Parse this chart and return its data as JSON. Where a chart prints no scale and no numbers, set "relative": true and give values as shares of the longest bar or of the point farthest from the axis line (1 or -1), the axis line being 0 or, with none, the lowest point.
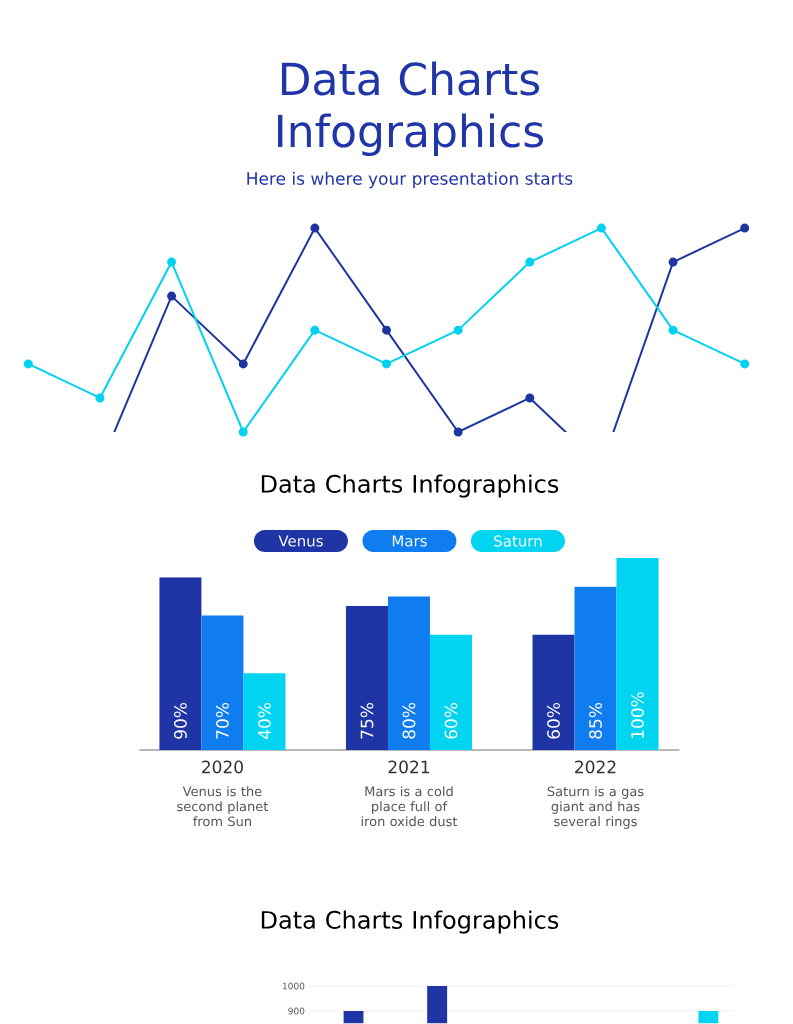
{
  "chart_data": [
    {
      "type": "line",
      "title": "Data Charts Infographics",
      "subtitle": "Here is where your presentation starts",
      "relative": true,
      "marker": "circle",
      "categories": [
        null,
        null,
        null,
        null,
        null,
        null,
        null,
        null,
        null,
        null,
        null,
        null
      ],
      "series": [
        {
          "color": "#1f35a0",
          "values": [
            null,
            0,
            0.714,
            0.429,
            1,
            0.571,
            0.143,
            0.286,
            0,
            0.857,
            1,
            null
          ]
        },
        {
          "color": "#00d2f0",
          "values": [
            0.429,
            0.286,
            0.857,
            0.143,
            0.571,
            0.429,
            0.571,
            0.857,
            1,
            0.571,
            0.429,
            null
          ]
        }
      ]
    },
    {
      "type": "bar",
      "title": "Data Charts Infographics",
      "categories": [
        "2020",
        "2021",
        "2022"
      ],
      "legend": "top",
      "series": [
        {
          "name": "Venus",
          "color": "#1f35a5",
          "values": [
            90,
            75,
            60
          ],
          "value_labels": [
            "90%",
            "75%",
            "60%"
          ]
        },
        {
          "name": "Mars",
          "color": "#0f7cf0",
          "values": [
            70,
            80,
            85
          ],
          "value_labels": [
            "70%",
            "80%",
            "85%"
          ]
        },
        {
          "name": "Saturn",
          "color": "#00d4f0",
          "values": [
            40,
            60,
            100
          ],
          "value_labels": [
            "40%",
            "60%",
            "100%"
          ]
        }
      ],
      "annotations": [
        "Venus is the second planet from Sun",
        "Mars is a cold place full of iron oxide dust",
        "Saturn is a gas giant and has several rings"
      ]
    },
    {
      "type": "bar",
      "title": "Data Charts Infographics",
      "categories": [
        null,
        null,
        null,
        null,
        null
      ],
      "ylim": [
        850,
        1000
      ],
      "yticks": [
        900,
        1000
      ],
      "grid": "y",
      "tick_labels": "y",
      "series": [
        {
          "color": "#1f35a5",
          "values": [
            900,
            1000,
            null,
            null,
            null
          ]
        },
        {
          "color": "#00d4f0",
          "values": [
            null,
            null,
            null,
            null,
            900
          ]
        }
      ]
    }
  ]
}
